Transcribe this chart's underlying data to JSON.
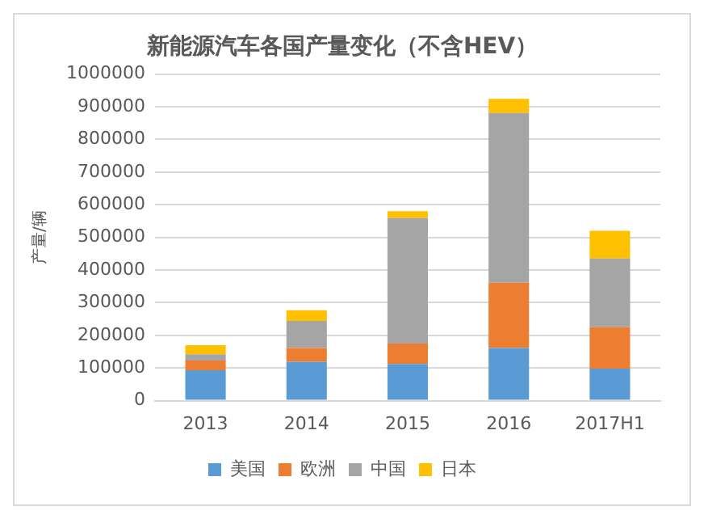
{
  "chart_data": {
    "type": "bar",
    "title": "新能源汽车各国产量变化（不含HEV）",
    "ylabel": "产量/辆",
    "categories": [
      "2013",
      "2014",
      "2015",
      "2016",
      "2017H1"
    ],
    "stacked": true,
    "ylim": [
      0,
      1000000
    ],
    "yticks": [
      0,
      100000,
      200000,
      300000,
      400000,
      500000,
      600000,
      700000,
      800000,
      900000,
      1000000
    ],
    "grid": "y",
    "legend": "bottom",
    "series": [
      {
        "name": "美国",
        "color": "#5b9bd5",
        "values": [
          93000,
          119000,
          112000,
          161000,
          98000
        ]
      },
      {
        "name": "欧洲",
        "color": "#ed7d31",
        "values": [
          30000,
          42000,
          63000,
          200000,
          127000
        ]
      },
      {
        "name": "中国",
        "color": "#a5a5a5",
        "values": [
          19000,
          83000,
          384000,
          520000,
          210000
        ]
      },
      {
        "name": "日本",
        "color": "#ffc000",
        "values": [
          28000,
          33000,
          21000,
          43000,
          85000
        ]
      }
    ]
  }
}
